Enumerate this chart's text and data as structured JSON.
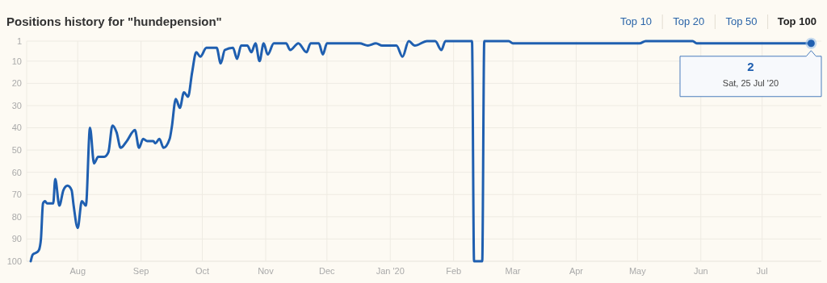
{
  "chart_data": {
    "type": "line",
    "title": "Positions history for \"hundepension\"",
    "x": [
      "2019-07-09",
      "2019-07-10",
      "2019-07-12",
      "2019-07-13",
      "2019-07-14",
      "2019-07-15",
      "2019-07-16",
      "2019-07-17",
      "2019-07-20",
      "2019-07-21",
      "2019-07-23",
      "2019-07-25",
      "2019-07-27",
      "2019-07-29",
      "2019-07-30",
      "2019-08-01",
      "2019-08-03",
      "2019-08-05",
      "2019-08-07",
      "2019-08-09",
      "2019-08-11",
      "2019-08-14",
      "2019-08-16",
      "2019-08-18",
      "2019-08-20",
      "2019-08-22",
      "2019-08-25",
      "2019-08-29",
      "2019-08-31",
      "2019-09-02",
      "2019-09-04",
      "2019-09-07",
      "2019-09-08",
      "2019-09-10",
      "2019-09-12",
      "2019-09-15",
      "2019-09-16",
      "2019-09-18",
      "2019-09-20",
      "2019-09-22",
      "2019-09-24",
      "2019-09-26",
      "2019-09-28",
      "2019-09-30",
      "2019-10-03",
      "2019-10-08",
      "2019-10-10",
      "2019-10-12",
      "2019-10-16",
      "2019-10-18",
      "2019-10-20",
      "2019-10-23",
      "2019-10-25",
      "2019-10-27",
      "2019-10-29",
      "2019-10-31",
      "2019-11-02",
      "2019-11-05",
      "2019-11-11",
      "2019-11-13",
      "2019-11-17",
      "2019-11-21",
      "2019-11-23",
      "2019-11-27",
      "2019-11-29",
      "2019-12-01",
      "2019-12-17",
      "2019-12-21",
      "2019-12-25",
      "2019-12-28",
      "2020-01-04",
      "2020-01-07",
      "2020-01-10",
      "2020-01-13",
      "2020-01-19",
      "2020-01-23",
      "2020-01-26",
      "2020-01-28",
      "2020-02-10",
      "2020-02-11",
      "2020-02-15",
      "2020-02-16",
      "2020-02-28",
      "2020-03-01",
      "2020-05-02",
      "2020-05-05",
      "2020-05-28",
      "2020-05-30",
      "2020-07-25"
    ],
    "series": [
      {
        "color": "#1f5fb0",
        "values": [
          100,
          97,
          96,
          95,
          90,
          74,
          73,
          74,
          74,
          63,
          75,
          68,
          66,
          68,
          75,
          85,
          73,
          75,
          40,
          56,
          53,
          53,
          51,
          39,
          42,
          49,
          46,
          41,
          49,
          45,
          46,
          46,
          47,
          45,
          49,
          45,
          40,
          27,
          31,
          24,
          26,
          15,
          6,
          8,
          4,
          4,
          11,
          5,
          4,
          9,
          3,
          3,
          6,
          2,
          10,
          2,
          7,
          2,
          2,
          5,
          2,
          6,
          2,
          2,
          7,
          2,
          2,
          3,
          2,
          3,
          3,
          8,
          1,
          3,
          1,
          1,
          5,
          1,
          1,
          100,
          100,
          1,
          1,
          2,
          2,
          1,
          1,
          2,
          2
        ]
      }
    ],
    "xlim": [
      "2019-07-07",
      "2020-07-30"
    ],
    "xticks": [
      {
        "value": "2019-08",
        "label": "Aug"
      },
      {
        "value": "2019-09",
        "label": "Sep"
      },
      {
        "value": "2019-10",
        "label": "Oct"
      },
      {
        "value": "2019-11",
        "label": "Nov"
      },
      {
        "value": "2019-12",
        "label": "Dec"
      },
      {
        "value": "2020-01",
        "label": "Jan '20"
      },
      {
        "value": "2020-02",
        "label": "Feb"
      },
      {
        "value": "2020-03",
        "label": "Mar"
      },
      {
        "value": "2020-04",
        "label": "Apr"
      },
      {
        "value": "2020-05",
        "label": "May"
      },
      {
        "value": "2020-06",
        "label": "Jun"
      },
      {
        "value": "2020-07",
        "label": "Jul"
      }
    ],
    "ylim": [
      100,
      1
    ],
    "yticks": [
      1,
      10,
      20,
      30,
      40,
      50,
      60,
      70,
      80,
      90,
      100
    ],
    "grid": true,
    "marker": "none",
    "line_style": "solid",
    "annotations": [
      "Top 10",
      "Top 20",
      "Top 50",
      "Top 100",
      "2",
      "Sat, 25 Jul '20"
    ]
  }
}
